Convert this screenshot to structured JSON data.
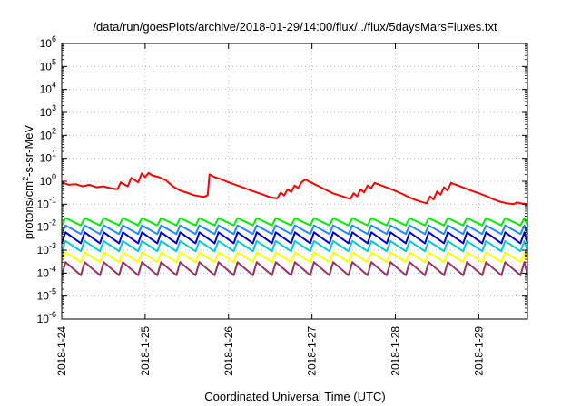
{
  "chart_data": {
    "type": "line",
    "title": "/data/run/goesPlots/archive/2018-01-29/14:00/flux/../flux/5daysMarsFluxes.txt",
    "xlabel": "Coordinated Universal Time (UTC)",
    "ylabel_parts": {
      "pre": "protons/cm",
      "sup": "2",
      "post": "-s-sr-MeV"
    },
    "x_range": [
      "2018-01-24",
      "2018-01-29T14:00"
    ],
    "x_ticks": [
      "2018-1-24",
      "2018-1-25",
      "2018-1-26",
      "2018-1-27",
      "2018-1-28",
      "2018-1-29"
    ],
    "y_scale": "log",
    "y_range": [
      1e-06,
      1000000.0
    ],
    "y_ticks": [
      {
        "base": "10",
        "exp": "-6"
      },
      {
        "base": "10",
        "exp": "-5"
      },
      {
        "base": "10",
        "exp": "-4"
      },
      {
        "base": "10",
        "exp": "-3"
      },
      {
        "base": "10",
        "exp": "-2"
      },
      {
        "base": "10",
        "exp": "-1"
      },
      {
        "base": "10",
        "exp": "0"
      },
      {
        "base": "10",
        "exp": "1"
      },
      {
        "base": "10",
        "exp": "2"
      },
      {
        "base": "10",
        "exp": "3"
      },
      {
        "base": "10",
        "exp": "4"
      },
      {
        "base": "10",
        "exp": "5"
      },
      {
        "base": "10",
        "exp": "6"
      }
    ],
    "grid": true,
    "series": [
      {
        "color": "#ff0000",
        "points": [
          [
            "2018-01-24T00:00",
            0.9
          ],
          [
            "2018-01-24T02:00",
            0.7
          ],
          [
            "2018-01-24T04:00",
            0.75
          ],
          [
            "2018-01-24T06:00",
            0.6
          ],
          [
            "2018-01-24T08:00",
            0.7
          ],
          [
            "2018-01-24T10:00",
            0.55
          ],
          [
            "2018-01-24T12:00",
            0.6
          ],
          [
            "2018-01-24T14:00",
            0.5
          ],
          [
            "2018-01-24T16:00",
            0.45
          ],
          [
            "2018-01-24T17:00",
            0.9
          ],
          [
            "2018-01-24T19:00",
            0.6
          ],
          [
            "2018-01-24T20:00",
            1.4
          ],
          [
            "2018-01-24T22:00",
            0.9
          ],
          [
            "2018-01-24T23:00",
            2.2
          ],
          [
            "2018-01-25T00:00",
            1.5
          ],
          [
            "2018-01-25T01:00",
            2.3
          ],
          [
            "2018-01-25T02:00",
            1.8
          ],
          [
            "2018-01-25T04:00",
            1.5
          ],
          [
            "2018-01-25T06:00",
            1.1
          ],
          [
            "2018-01-25T08:00",
            0.6
          ],
          [
            "2018-01-25T10:00",
            0.4
          ],
          [
            "2018-01-25T12:00",
            0.32
          ],
          [
            "2018-01-25T14:00",
            0.25
          ],
          [
            "2018-01-25T16:00",
            0.22
          ],
          [
            "2018-01-25T17:00",
            0.21
          ],
          [
            "2018-01-25T18:00",
            0.25
          ],
          [
            "2018-01-25T18:30",
            2.0
          ],
          [
            "2018-01-25T20:00",
            1.5
          ],
          [
            "2018-01-25T22:00",
            1.2
          ],
          [
            "2018-01-26T00:00",
            0.9
          ],
          [
            "2018-01-26T02:00",
            0.7
          ],
          [
            "2018-01-26T04:00",
            0.55
          ],
          [
            "2018-01-26T06:00",
            0.42
          ],
          [
            "2018-01-26T08:00",
            0.33
          ],
          [
            "2018-01-26T10:00",
            0.26
          ],
          [
            "2018-01-26T12:00",
            0.2
          ],
          [
            "2018-01-26T14:00",
            0.18
          ],
          [
            "2018-01-26T15:00",
            0.32
          ],
          [
            "2018-01-26T16:00",
            0.24
          ],
          [
            "2018-01-26T17:00",
            0.45
          ],
          [
            "2018-01-26T18:00",
            0.34
          ],
          [
            "2018-01-26T19:00",
            0.65
          ],
          [
            "2018-01-26T20:00",
            0.5
          ],
          [
            "2018-01-26T21:00",
            0.9
          ],
          [
            "2018-01-26T22:00",
            1.2
          ],
          [
            "2018-01-27T00:00",
            0.85
          ],
          [
            "2018-01-27T02:00",
            0.6
          ],
          [
            "2018-01-27T04:00",
            0.42
          ],
          [
            "2018-01-27T06:00",
            0.3
          ],
          [
            "2018-01-27T08:00",
            0.24
          ],
          [
            "2018-01-27T10:00",
            0.19
          ],
          [
            "2018-01-27T11:00",
            0.17
          ],
          [
            "2018-01-27T12:00",
            0.3
          ],
          [
            "2018-01-27T13:00",
            0.22
          ],
          [
            "2018-01-27T14:00",
            0.45
          ],
          [
            "2018-01-27T15:00",
            0.33
          ],
          [
            "2018-01-27T16:00",
            0.65
          ],
          [
            "2018-01-27T17:00",
            0.5
          ],
          [
            "2018-01-27T18:00",
            0.85
          ],
          [
            "2018-01-27T20:00",
            0.65
          ],
          [
            "2018-01-27T22:00",
            0.5
          ],
          [
            "2018-01-28T00:00",
            0.38
          ],
          [
            "2018-01-28T02:00",
            0.28
          ],
          [
            "2018-01-28T04:00",
            0.2
          ],
          [
            "2018-01-28T06:00",
            0.15
          ],
          [
            "2018-01-28T08:00",
            0.12
          ],
          [
            "2018-01-28T09:00",
            0.11
          ],
          [
            "2018-01-28T10:00",
            0.22
          ],
          [
            "2018-01-28T11:00",
            0.16
          ],
          [
            "2018-01-28T12:00",
            0.36
          ],
          [
            "2018-01-28T13:00",
            0.26
          ],
          [
            "2018-01-28T14:00",
            0.55
          ],
          [
            "2018-01-28T15:00",
            0.4
          ],
          [
            "2018-01-28T16:00",
            0.85
          ],
          [
            "2018-01-28T18:00",
            0.65
          ],
          [
            "2018-01-28T20:00",
            0.5
          ],
          [
            "2018-01-28T22:00",
            0.38
          ],
          [
            "2018-01-29T00:00",
            0.3
          ],
          [
            "2018-01-29T02:00",
            0.23
          ],
          [
            "2018-01-29T04:00",
            0.17
          ],
          [
            "2018-01-29T06:00",
            0.13
          ],
          [
            "2018-01-29T08:00",
            0.11
          ],
          [
            "2018-01-29T10:00",
            0.1
          ],
          [
            "2018-01-29T11:00",
            0.12
          ],
          [
            "2018-01-29T12:00",
            0.11
          ],
          [
            "2018-01-29T14:00",
            0.1
          ]
        ]
      },
      {
        "color": "#00ee00",
        "pattern": {
          "period_hours": 5.5,
          "peak": 0.025,
          "trough": 0.012,
          "start": "2018-01-24T00:00",
          "end": "2018-01-29T14:00"
        }
      },
      {
        "color": "#2288ff",
        "pattern": {
          "period_hours": 5.5,
          "peak": 0.012,
          "trough": 0.005,
          "start": "2018-01-24T00:00",
          "end": "2018-01-29T14:00"
        }
      },
      {
        "color": "#0000cc",
        "pattern": {
          "period_hours": 5.5,
          "peak": 0.006,
          "trough": 0.002,
          "start": "2018-01-24T00:00",
          "end": "2018-01-29T14:00"
        }
      },
      {
        "color": "#00cccc",
        "pattern": {
          "period_hours": 5.5,
          "peak": 0.0025,
          "trough": 0.0009,
          "start": "2018-01-24T00:00",
          "end": "2018-01-29T14:00"
        }
      },
      {
        "color": "#ffff00",
        "pattern": {
          "period_hours": 5.5,
          "peak": 0.0008,
          "trough": 0.0003,
          "start": "2018-01-24T00:00",
          "end": "2018-01-29T14:00"
        }
      },
      {
        "color": "#993366",
        "pattern": {
          "period_hours": 5.5,
          "peak": 0.0003,
          "trough": 8e-05,
          "start": "2018-01-24T00:00",
          "end": "2018-01-29T14:00"
        }
      }
    ]
  }
}
